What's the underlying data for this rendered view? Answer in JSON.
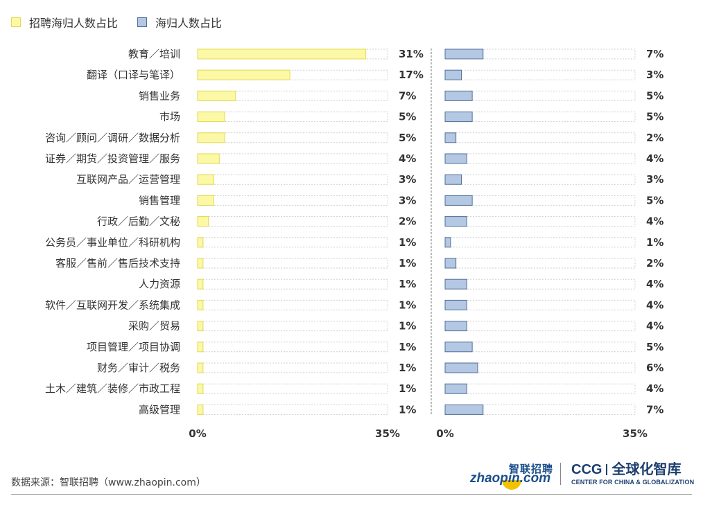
{
  "legend": {
    "items": [
      {
        "label": "招聘海归人数占比",
        "fill": "#fbf8a6",
        "stroke": "#e5d94f"
      },
      {
        "label": "海归人数占比",
        "fill": "#b4c7e3",
        "stroke": "#4f6f99"
      }
    ]
  },
  "chart_data": {
    "type": "bar",
    "orientation": "horizontal",
    "categories": [
      "教育／培训",
      "翻译（口译与笔译）",
      "销售业务",
      "市场",
      "咨询／顾问／调研／数据分析",
      "证券／期货／投资管理／服务",
      "互联网产品／运营管理",
      "销售管理",
      "行政／后勤／文秘",
      "公务员／事业单位／科研机构",
      "客服／售前／售后技术支持",
      "人力资源",
      "软件／互联网开发／系统集成",
      "采购／贸易",
      "项目管理／项目协调",
      "财务／审计／税务",
      "土木／建筑／装修／市政工程",
      "高级管理"
    ],
    "series": [
      {
        "name": "招聘海归人数占比",
        "values": [
          31,
          17,
          7,
          5,
          5,
          4,
          3,
          3,
          2,
          1,
          1,
          1,
          1,
          1,
          1,
          1,
          1,
          1
        ],
        "labels": [
          "31%",
          "17%",
          "7%",
          "5%",
          "5%",
          "4%",
          "3%",
          "3%",
          "2%",
          "1%",
          "1%",
          "1%",
          "1%",
          "1%",
          "1%",
          "1%",
          "1%",
          "1%"
        ],
        "xlim": [
          0,
          35
        ],
        "tick_labels": [
          "0%",
          "35%"
        ],
        "color": "#fbf8a6"
      },
      {
        "name": "海归人数占比",
        "values": [
          7,
          3,
          5,
          5,
          2,
          4,
          3,
          5,
          4,
          1,
          2,
          4,
          4,
          4,
          5,
          6,
          4,
          7
        ],
        "labels": [
          "7%",
          "3%",
          "5%",
          "5%",
          "2%",
          "4%",
          "3%",
          "5%",
          "4%",
          "1%",
          "2%",
          "4%",
          "4%",
          "4%",
          "5%",
          "6%",
          "4%",
          "7%"
        ],
        "xlim": [
          0,
          35
        ],
        "tick_labels": [
          "0%",
          "35%"
        ],
        "color": "#b4c7e3"
      }
    ],
    "legend_position": "top-left",
    "grid": false
  },
  "footer": {
    "source": "数据来源：智联招聘（www.zhaopin.com）",
    "logo_zhaopin_cn": "智联招聘",
    "logo_zhaopin_en": "zhaopin.com",
    "logo_ccg": "CCG",
    "logo_ccg_cn": "全球化智库",
    "logo_ccg_en": "CENTER FOR CHINA & GLOBALIZATION"
  }
}
